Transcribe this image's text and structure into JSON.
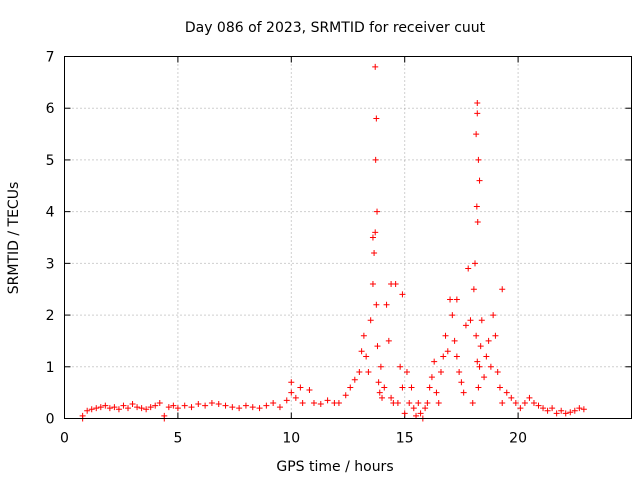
{
  "chart_data": {
    "type": "scatter",
    "title": "Day 086 of 2023, SRMTID for receiver cuut",
    "xlabel": "GPS time / hours",
    "ylabel": "SRMTID / TECUs",
    "xlim": [
      0,
      25
    ],
    "ylim": [
      0,
      7
    ],
    "xticks": [
      "0",
      "5",
      "10",
      "15",
      "20"
    ],
    "yticks": [
      "0",
      "1",
      "2",
      "3",
      "4",
      "5",
      "6",
      "7"
    ],
    "grid": true,
    "legend": "none",
    "marker": "plus",
    "color": "#ff0000",
    "series": [
      {
        "x": [
          0.8,
          1.0,
          1.2,
          1.4,
          1.6,
          1.8,
          2.0,
          2.2,
          2.4,
          2.6,
          2.8,
          3.0,
          3.2,
          3.4,
          3.6,
          3.8,
          4.0,
          4.2,
          4.4,
          4.6,
          4.8,
          5.0,
          5.3,
          5.6,
          5.9,
          6.2,
          6.5,
          6.8,
          7.1,
          7.4,
          7.7,
          8.0,
          8.3,
          8.6,
          8.9,
          9.2,
          9.5,
          9.8,
          10.0,
          10.2,
          10.5,
          10.8,
          11.0,
          11.3,
          11.6,
          11.9,
          12.1,
          12.4,
          12.6,
          12.8,
          13.0,
          13.1,
          13.2,
          13.3,
          13.4,
          13.5,
          13.6,
          13.65,
          13.7,
          13.75,
          13.8,
          13.85,
          13.9,
          13.95,
          14.0,
          14.1,
          14.2,
          14.3,
          14.4,
          14.5,
          14.6,
          14.7,
          14.8,
          14.9,
          15.0,
          15.1,
          15.2,
          15.3,
          15.4,
          15.5,
          15.6,
          15.7,
          15.8,
          15.9,
          16.0,
          16.1,
          16.2,
          16.3,
          16.4,
          16.5,
          16.6,
          16.7,
          16.8,
          16.9,
          17.0,
          17.1,
          17.2,
          17.3,
          17.4,
          17.5,
          17.6,
          17.7,
          17.8,
          17.9,
          18.0,
          18.05,
          18.1,
          18.15,
          18.2,
          18.25,
          18.3,
          18.35,
          18.4,
          18.5,
          18.6,
          18.7,
          18.8,
          18.9,
          19.0,
          19.1,
          19.2,
          19.3,
          19.5,
          19.7,
          19.9,
          20.1,
          20.3,
          20.5,
          20.7,
          20.9,
          21.1,
          21.3,
          21.5,
          21.7,
          21.9,
          22.1,
          22.3,
          22.5,
          22.7,
          22.9,
          0.8,
          4.4,
          10.0,
          10.4,
          13.7,
          13.75,
          13.72,
          13.78,
          18.2,
          18.2,
          18.15,
          18.25,
          18.3,
          18.18,
          18.22,
          14.9,
          17.3,
          19.3,
          13.6,
          14.4
        ],
        "y": [
          0.0,
          0.15,
          0.18,
          0.2,
          0.22,
          0.25,
          0.2,
          0.22,
          0.18,
          0.25,
          0.2,
          0.28,
          0.22,
          0.2,
          0.18,
          0.22,
          0.25,
          0.3,
          0.0,
          0.22,
          0.25,
          0.2,
          0.25,
          0.22,
          0.28,
          0.25,
          0.3,
          0.28,
          0.25,
          0.22,
          0.2,
          0.25,
          0.22,
          0.2,
          0.25,
          0.3,
          0.22,
          0.35,
          0.5,
          0.4,
          0.3,
          0.55,
          0.3,
          0.28,
          0.35,
          0.3,
          0.3,
          0.45,
          0.6,
          0.75,
          0.9,
          1.3,
          1.6,
          1.2,
          0.9,
          1.9,
          2.6,
          3.2,
          3.6,
          2.2,
          1.4,
          0.7,
          0.5,
          1.0,
          0.4,
          0.6,
          2.2,
          1.5,
          0.4,
          0.3,
          2.6,
          0.3,
          1.0,
          0.6,
          0.1,
          0.9,
          0.3,
          0.6,
          0.2,
          0.05,
          0.3,
          0.1,
          0.0,
          0.2,
          0.3,
          0.6,
          0.8,
          1.1,
          0.5,
          0.3,
          0.9,
          1.2,
          1.6,
          1.3,
          2.3,
          2.0,
          1.5,
          1.2,
          0.9,
          0.7,
          0.5,
          1.8,
          2.9,
          1.9,
          0.3,
          2.5,
          3.0,
          1.6,
          1.1,
          0.6,
          1.0,
          1.4,
          1.9,
          0.8,
          1.2,
          1.5,
          1.0,
          2.0,
          1.6,
          0.9,
          0.6,
          0.3,
          0.5,
          0.4,
          0.3,
          0.2,
          0.3,
          0.4,
          0.3,
          0.25,
          0.2,
          0.15,
          0.2,
          0.1,
          0.15,
          0.1,
          0.12,
          0.15,
          0.2,
          0.18,
          0.05,
          0.05,
          0.7,
          0.6,
          6.8,
          5.8,
          5.0,
          4.0,
          6.1,
          5.9,
          5.5,
          5.0,
          4.6,
          4.1,
          3.8,
          2.4,
          2.3,
          2.5,
          3.5,
          2.6
        ]
      }
    ]
  }
}
